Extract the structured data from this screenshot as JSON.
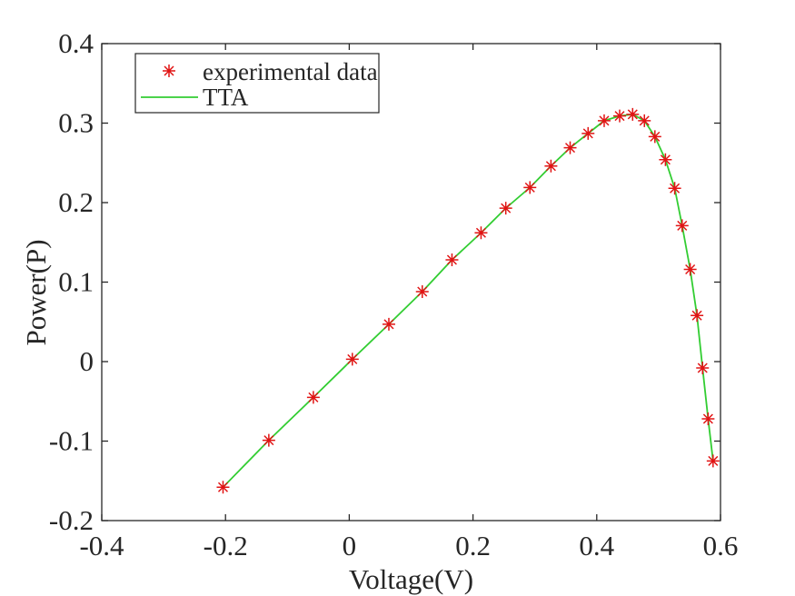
{
  "figure": {
    "background": "#ffffff",
    "text_color": "#262626",
    "axis_color": "#262626"
  },
  "chart_data": {
    "type": "line",
    "title": "",
    "xlabel": "Voltage(V)",
    "ylabel": "Power(P)",
    "xlim": [
      -0.4,
      0.6
    ],
    "ylim": [
      -0.2,
      0.4
    ],
    "x_ticks": [
      -0.4,
      -0.2,
      0,
      0.2,
      0.4,
      0.6
    ],
    "x_tick_labels": [
      "-0.4",
      "-0.2",
      "0",
      "0.2",
      "0.4",
      "0.6"
    ],
    "y_ticks": [
      -0.2,
      -0.1,
      0,
      0.1,
      0.2,
      0.3,
      0.4
    ],
    "y_tick_labels": [
      "-0.2",
      "-0.1",
      "0",
      "0.1",
      "0.2",
      "0.3",
      "0.4"
    ],
    "grid": false,
    "legend_position": "top-left-inside",
    "points": {
      "x": [
        -0.204,
        -0.13,
        -0.058,
        0.005,
        0.064,
        0.118,
        0.166,
        0.213,
        0.253,
        0.292,
        0.326,
        0.357,
        0.386,
        0.412,
        0.437,
        0.458,
        0.477,
        0.494,
        0.511,
        0.526,
        0.538,
        0.551,
        0.562,
        0.571,
        0.58,
        0.588
      ],
      "y": [
        -0.158,
        -0.099,
        -0.045,
        0.003,
        0.047,
        0.088,
        0.128,
        0.162,
        0.193,
        0.219,
        0.246,
        0.269,
        0.287,
        0.303,
        0.309,
        0.311,
        0.303,
        0.283,
        0.254,
        0.218,
        0.171,
        0.116,
        0.058,
        -0.008,
        -0.072,
        -0.125
      ]
    },
    "series": [
      {
        "name": "experimental data",
        "plot": "scatter",
        "marker": "asterisk",
        "color": "#e11414",
        "data_ref": "points"
      },
      {
        "name": "TTA",
        "plot": "line",
        "color": "#32cd32",
        "data_ref": "points"
      }
    ]
  },
  "legend": {
    "entries": [
      {
        "label": "experimental data",
        "sample": "asterisk-marker",
        "color": "#e11414"
      },
      {
        "label": "TTA",
        "sample": "line",
        "color": "#32cd32"
      }
    ]
  }
}
